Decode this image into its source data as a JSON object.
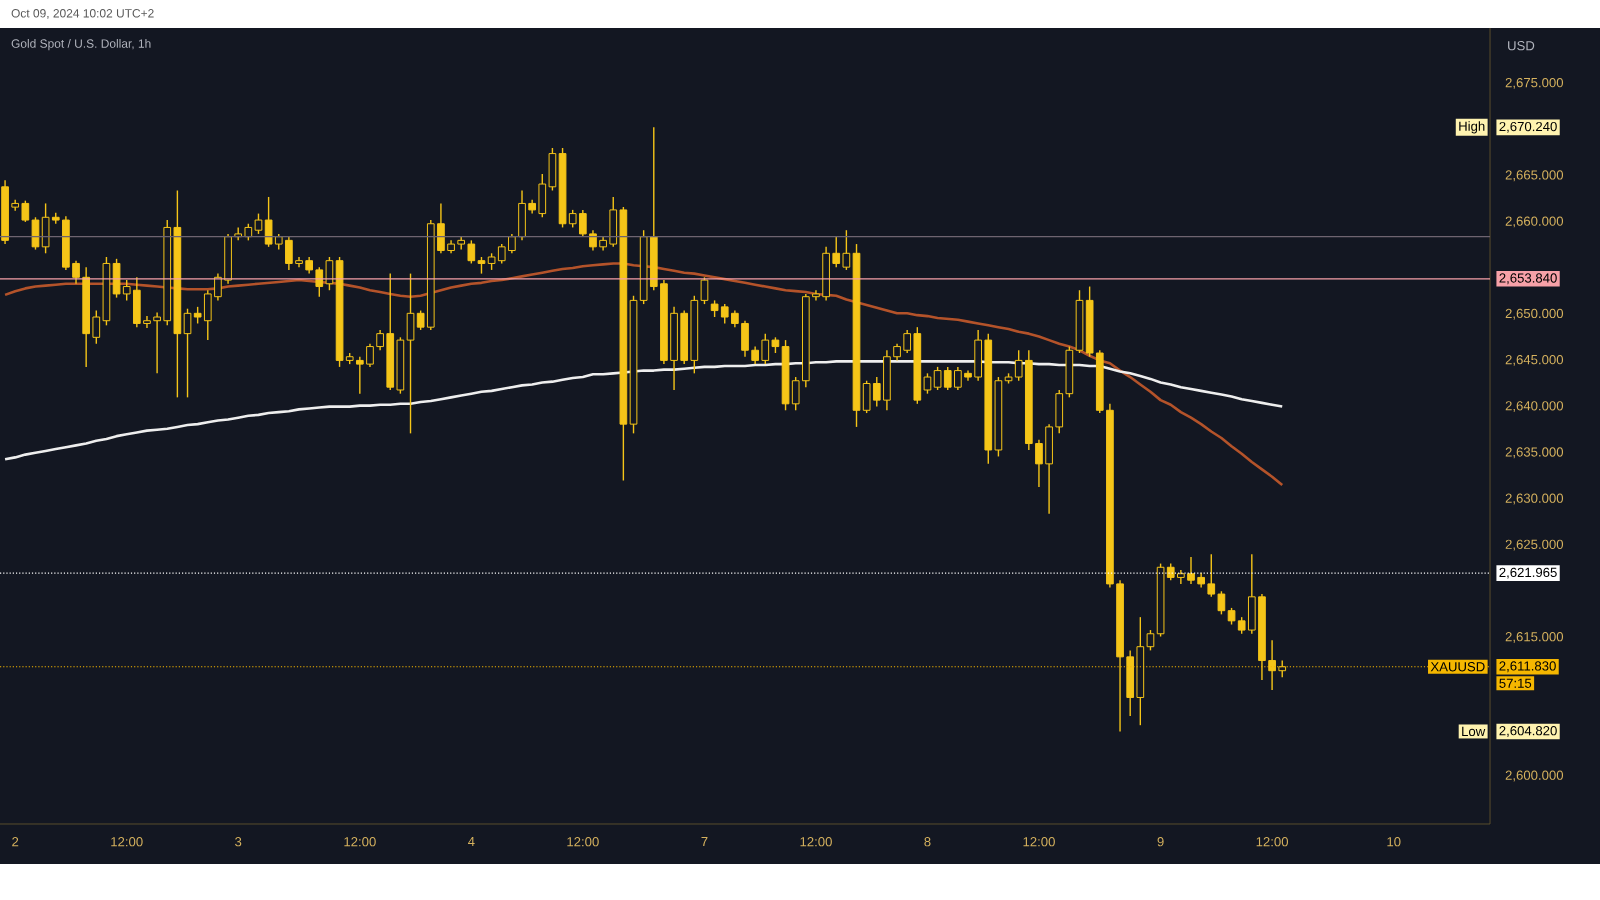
{
  "chart_data": {
    "type": "candlestick",
    "title": "Gold Spot / U.S. Dollar, 1h",
    "subtitle": "Oct 09, 2024 10:02 UTC+2",
    "ylabel": "USD",
    "color": "#f5c518",
    "categories": [
      null,
      "2",
      null,
      null,
      null,
      null,
      null,
      null,
      null,
      null,
      null,
      null,
      "12:00",
      null,
      null,
      null,
      null,
      null,
      null,
      null,
      null,
      null,
      null,
      "3",
      null,
      null,
      null,
      null,
      null,
      null,
      null,
      null,
      null,
      null,
      null,
      "12:00",
      null,
      null,
      null,
      null,
      null,
      null,
      null,
      null,
      null,
      null,
      "4",
      null,
      null,
      null,
      null,
      null,
      null,
      null,
      null,
      null,
      null,
      "12:00",
      null,
      null,
      null,
      null,
      null,
      null,
      null,
      null,
      null,
      null,
      null,
      "7",
      null,
      null,
      null,
      null,
      null,
      null,
      null,
      null,
      null,
      null,
      "12:00",
      null,
      null,
      null,
      null,
      null,
      null,
      null,
      null,
      null,
      null,
      "8",
      null,
      null,
      null,
      null,
      null,
      null,
      null,
      null,
      null,
      null,
      "12:00",
      null,
      null,
      null,
      null,
      null,
      null,
      null,
      null,
      null,
      null,
      null,
      "9",
      null,
      null,
      null,
      null,
      null,
      null,
      null,
      null,
      null,
      null,
      "12:00",
      null,
      null,
      null,
      null,
      null,
      null,
      null,
      null,
      null,
      null,
      null,
      "10",
      null,
      null,
      null,
      null,
      null,
      null,
      null,
      null,
      null
    ],
    "ohlc": [
      [
        2663.8,
        2664.5,
        2657.6,
        2658.0
      ],
      [
        2661.6,
        2662.4,
        2661.2,
        2662.0
      ],
      [
        2662.0,
        2662.3,
        2660.0,
        2660.2
      ],
      [
        2660.2,
        2660.5,
        2657.0,
        2657.3
      ],
      [
        2657.3,
        2662.0,
        2656.6,
        2660.5
      ],
      [
        2660.5,
        2661.0,
        2659.8,
        2660.2
      ],
      [
        2660.2,
        2660.6,
        2654.8,
        2655.1
      ],
      [
        2655.5,
        2655.8,
        2653.3,
        2654.0
      ],
      [
        2654.0,
        2655.1,
        2644.3,
        2647.9
      ],
      [
        2647.5,
        2650.4,
        2646.8,
        2649.7
      ],
      [
        2649.3,
        2656.2,
        2648.8,
        2655.5
      ],
      [
        2655.5,
        2656.0,
        2651.8,
        2652.2
      ],
      [
        2652.2,
        2653.7,
        2651.5,
        2653.0
      ],
      [
        2652.6,
        2654.0,
        2648.6,
        2649.0
      ],
      [
        2649.0,
        2649.8,
        2648.5,
        2649.3
      ],
      [
        2649.3,
        2650.2,
        2643.6,
        2649.7
      ],
      [
        2649.3,
        2660.2,
        2648.8,
        2659.4
      ],
      [
        2659.4,
        2663.4,
        2641.0,
        2647.9
      ],
      [
        2647.9,
        2650.6,
        2641.0,
        2650.1
      ],
      [
        2650.1,
        2650.8,
        2649.0,
        2649.7
      ],
      [
        2649.3,
        2652.6,
        2647.2,
        2652.2
      ],
      [
        2651.9,
        2654.4,
        2651.5,
        2654.0
      ],
      [
        2653.7,
        2658.7,
        2653.3,
        2658.4
      ],
      [
        2658.4,
        2659.4,
        2658.0,
        2658.7
      ],
      [
        2658.4,
        2659.8,
        2658.0,
        2659.4
      ],
      [
        2659.1,
        2660.9,
        2658.7,
        2660.2
      ],
      [
        2660.2,
        2662.7,
        2657.3,
        2657.6
      ],
      [
        2657.6,
        2658.7,
        2657.0,
        2658.4
      ],
      [
        2658.0,
        2658.4,
        2654.8,
        2655.5
      ],
      [
        2655.5,
        2656.2,
        2655.1,
        2655.8
      ],
      [
        2655.8,
        2656.2,
        2654.4,
        2654.8
      ],
      [
        2654.8,
        2655.1,
        2651.9,
        2653.0
      ],
      [
        2653.3,
        2656.2,
        2652.6,
        2655.8
      ],
      [
        2655.8,
        2656.2,
        2644.3,
        2645.0
      ],
      [
        2645.0,
        2645.8,
        2644.6,
        2645.4
      ],
      [
        2645.0,
        2645.4,
        2641.4,
        2644.6
      ],
      [
        2644.6,
        2646.8,
        2644.3,
        2646.5
      ],
      [
        2646.5,
        2648.3,
        2646.1,
        2647.9
      ],
      [
        2647.9,
        2654.4,
        2641.8,
        2642.1
      ],
      [
        2641.8,
        2647.5,
        2641.4,
        2647.2
      ],
      [
        2647.2,
        2654.4,
        2637.1,
        2650.1
      ],
      [
        2650.1,
        2650.4,
        2648.3,
        2648.6
      ],
      [
        2648.6,
        2660.2,
        2648.3,
        2659.8
      ],
      [
        2659.8,
        2662.0,
        2656.6,
        2656.9
      ],
      [
        2656.9,
        2658.0,
        2656.6,
        2657.6
      ],
      [
        2657.6,
        2658.4,
        2657.0,
        2658.0
      ],
      [
        2657.6,
        2658.0,
        2655.5,
        2655.8
      ],
      [
        2655.8,
        2656.2,
        2654.4,
        2655.5
      ],
      [
        2655.5,
        2656.6,
        2654.8,
        2656.2
      ],
      [
        2655.8,
        2657.6,
        2655.5,
        2657.3
      ],
      [
        2656.9,
        2658.7,
        2656.6,
        2658.4
      ],
      [
        2658.4,
        2663.4,
        2658.0,
        2662.0
      ],
      [
        2662.0,
        2662.4,
        2660.9,
        2661.3
      ],
      [
        2660.9,
        2665.2,
        2660.5,
        2664.1
      ],
      [
        2663.8,
        2668.0,
        2663.4,
        2667.4
      ],
      [
        2667.4,
        2668.0,
        2659.4,
        2659.8
      ],
      [
        2659.8,
        2661.3,
        2659.4,
        2660.9
      ],
      [
        2660.9,
        2661.3,
        2658.4,
        2658.7
      ],
      [
        2658.7,
        2659.1,
        2656.9,
        2657.3
      ],
      [
        2657.3,
        2658.4,
        2656.9,
        2658.0
      ],
      [
        2657.6,
        2662.7,
        2657.3,
        2661.3
      ],
      [
        2661.3,
        2661.6,
        2632.0,
        2638.1
      ],
      [
        2638.1,
        2652.0,
        2637.1,
        2651.5
      ],
      [
        2651.5,
        2659.1,
        2651.1,
        2658.4
      ],
      [
        2658.4,
        2670.24,
        2652.6,
        2653.0
      ],
      [
        2653.3,
        2653.7,
        2644.6,
        2645.0
      ],
      [
        2645.0,
        2650.8,
        2641.8,
        2650.1
      ],
      [
        2650.1,
        2650.4,
        2644.6,
        2645.0
      ],
      [
        2645.0,
        2652.0,
        2643.6,
        2651.5
      ],
      [
        2651.5,
        2654.0,
        2651.1,
        2653.7
      ],
      [
        2651.1,
        2651.5,
        2649.7,
        2650.4
      ],
      [
        2650.8,
        2651.1,
        2649.0,
        2649.7
      ],
      [
        2650.1,
        2650.4,
        2648.6,
        2649.0
      ],
      [
        2649.0,
        2649.3,
        2645.4,
        2646.1
      ],
      [
        2646.1,
        2646.5,
        2644.6,
        2645.0
      ],
      [
        2645.0,
        2647.9,
        2644.6,
        2647.2
      ],
      [
        2647.2,
        2647.5,
        2645.8,
        2646.5
      ],
      [
        2646.5,
        2647.2,
        2639.6,
        2640.3
      ],
      [
        2640.3,
        2643.2,
        2639.6,
        2642.8
      ],
      [
        2642.8,
        2652.2,
        2642.1,
        2651.9
      ],
      [
        2651.9,
        2652.6,
        2651.5,
        2652.2
      ],
      [
        2651.9,
        2657.3,
        2651.5,
        2656.6
      ],
      [
        2656.6,
        2658.4,
        2655.1,
        2655.5
      ],
      [
        2655.1,
        2659.1,
        2654.8,
        2656.6
      ],
      [
        2656.6,
        2657.6,
        2637.8,
        2639.6
      ],
      [
        2639.6,
        2642.8,
        2639.3,
        2642.5
      ],
      [
        2642.5,
        2643.2,
        2640.0,
        2640.7
      ],
      [
        2640.7,
        2646.1,
        2639.6,
        2645.4
      ],
      [
        2645.4,
        2646.8,
        2645.0,
        2646.5
      ],
      [
        2646.1,
        2648.3,
        2645.8,
        2647.9
      ],
      [
        2647.9,
        2648.6,
        2640.3,
        2640.7
      ],
      [
        2641.8,
        2643.6,
        2641.4,
        2643.2
      ],
      [
        2642.1,
        2644.3,
        2641.8,
        2643.9
      ],
      [
        2643.9,
        2644.3,
        2641.8,
        2642.1
      ],
      [
        2642.1,
        2644.3,
        2641.8,
        2643.9
      ],
      [
        2643.6,
        2643.9,
        2642.8,
        2643.2
      ],
      [
        2643.2,
        2648.3,
        2642.8,
        2647.2
      ],
      [
        2647.2,
        2647.9,
        2633.8,
        2635.3
      ],
      [
        2635.3,
        2643.2,
        2634.6,
        2642.8
      ],
      [
        2642.8,
        2643.6,
        2642.5,
        2643.2
      ],
      [
        2643.2,
        2646.1,
        2642.8,
        2645.0
      ],
      [
        2645.0,
        2646.1,
        2635.3,
        2636.0
      ],
      [
        2636.0,
        2636.4,
        2631.3,
        2633.8
      ],
      [
        2633.8,
        2638.1,
        2628.4,
        2637.8
      ],
      [
        2637.8,
        2641.8,
        2637.1,
        2641.4
      ],
      [
        2641.4,
        2646.5,
        2641.0,
        2646.1
      ],
      [
        2646.1,
        2652.6,
        2645.8,
        2651.5
      ],
      [
        2651.5,
        2653.0,
        2645.4,
        2645.8
      ],
      [
        2645.8,
        2646.1,
        2639.3,
        2639.6
      ],
      [
        2639.6,
        2640.3,
        2620.4,
        2620.8
      ],
      [
        2620.8,
        2621.2,
        2604.82,
        2612.9
      ],
      [
        2612.9,
        2613.6,
        2606.5,
        2608.5
      ],
      [
        2608.5,
        2617.2,
        2605.5,
        2614.0
      ],
      [
        2614.0,
        2615.8,
        2613.6,
        2615.4
      ],
      [
        2615.4,
        2623.0,
        2615.1,
        2622.6
      ],
      [
        2622.6,
        2623.0,
        2621.2,
        2621.5
      ],
      [
        2621.5,
        2622.3,
        2620.8,
        2621.9
      ],
      [
        2621.9,
        2623.7,
        2620.8,
        2621.2
      ],
      [
        2621.5,
        2622.0,
        2620.4,
        2620.8
      ],
      [
        2620.8,
        2624.0,
        2619.4,
        2619.7
      ],
      [
        2619.7,
        2620.0,
        2617.5,
        2617.9
      ],
      [
        2617.9,
        2618.2,
        2616.4,
        2616.8
      ],
      [
        2616.8,
        2617.2,
        2615.4,
        2615.8
      ],
      [
        2615.8,
        2624.0,
        2615.4,
        2619.4
      ],
      [
        2619.4,
        2619.7,
        2610.4,
        2612.5
      ],
      [
        2612.5,
        2614.7,
        2609.3,
        2611.4
      ],
      [
        2611.4,
        2612.5,
        2610.7,
        2611.83
      ],
      null,
      null,
      null,
      null,
      null,
      null,
      null,
      null,
      null,
      null,
      null,
      null,
      null,
      null,
      null,
      null,
      null,
      null,
      null,
      null
    ],
    "series": [
      {
        "type": "line",
        "color": "#b4532a",
        "values": [
          2652.1,
          2652.5,
          2652.8,
          2653.0,
          2653.1,
          2653.2,
          2653.3,
          2653.3,
          2653.3,
          2653.3,
          2653.3,
          2653.3,
          2653.3,
          2653.2,
          2653.1,
          2653.0,
          2652.9,
          2652.8,
          2652.7,
          2652.7,
          2652.7,
          2652.8,
          2653.0,
          2653.1,
          2653.2,
          2653.3,
          2653.4,
          2653.5,
          2653.6,
          2653.7,
          2653.6,
          2653.5,
          2653.4,
          2653.3,
          2653.1,
          2652.9,
          2652.6,
          2652.4,
          2652.2,
          2652.0,
          2651.9,
          2652.0,
          2652.3,
          2652.6,
          2652.9,
          2653.1,
          2653.3,
          2653.4,
          2653.6,
          2653.7,
          2653.9,
          2654.1,
          2654.3,
          2654.5,
          2654.7,
          2654.9,
          2655.0,
          2655.2,
          2655.3,
          2655.4,
          2655.5,
          2655.5,
          2655.3,
          2655.2,
          2655.1,
          2654.9,
          2654.7,
          2654.5,
          2654.4,
          2654.2,
          2654.0,
          2653.8,
          2653.6,
          2653.4,
          2653.2,
          2653.0,
          2652.8,
          2652.6,
          2652.5,
          2652.4,
          2652.2,
          2652.1,
          2652.0,
          2651.6,
          2651.3,
          2651.0,
          2650.7,
          2650.4,
          2650.1,
          2650.1,
          2649.9,
          2649.8,
          2649.6,
          2649.5,
          2649.4,
          2649.2,
          2649.0,
          2648.8,
          2648.6,
          2648.4,
          2648.1,
          2647.9,
          2647.6,
          2647.2,
          2646.8,
          2646.5,
          2646.1,
          2645.5,
          2645.0,
          2644.7,
          2643.9,
          2643.2,
          2642.4,
          2641.6,
          2640.7,
          2640.2,
          2639.4,
          2638.8,
          2638.1,
          2637.3,
          2636.6,
          2635.7,
          2634.9,
          2634.0,
          2633.2,
          2632.4,
          2631.5,
          null,
          null,
          null,
          null,
          null,
          null,
          null,
          null,
          null,
          null,
          null,
          null,
          null,
          null,
          null,
          null,
          null,
          null,
          null,
          null
        ]
      },
      {
        "type": "line",
        "color": "#eeeeee",
        "values": [
          2634.3,
          2634.5,
          2634.8,
          2635.0,
          2635.2,
          2635.4,
          2635.6,
          2635.8,
          2636.0,
          2636.3,
          2636.5,
          2636.8,
          2637.0,
          2637.2,
          2637.4,
          2637.5,
          2637.6,
          2637.8,
          2638.0,
          2638.1,
          2638.3,
          2638.5,
          2638.6,
          2638.8,
          2639.0,
          2639.1,
          2639.3,
          2639.4,
          2639.5,
          2639.7,
          2639.8,
          2639.9,
          2640.0,
          2640.0,
          2640.0,
          2640.1,
          2640.1,
          2640.2,
          2640.2,
          2640.3,
          2640.3,
          2640.5,
          2640.6,
          2640.8,
          2641.0,
          2641.2,
          2641.4,
          2641.6,
          2641.7,
          2641.9,
          2642.1,
          2642.3,
          2642.4,
          2642.6,
          2642.7,
          2642.9,
          2643.1,
          2643.2,
          2643.5,
          2643.5,
          2643.6,
          2643.7,
          2643.8,
          2643.9,
          2643.9,
          2644.0,
          2644.0,
          2644.1,
          2644.2,
          2644.3,
          2644.3,
          2644.4,
          2644.4,
          2644.4,
          2644.5,
          2644.5,
          2644.6,
          2644.6,
          2644.7,
          2644.7,
          2644.8,
          2644.8,
          2644.9,
          2644.9,
          2644.9,
          2644.9,
          2644.9,
          2644.9,
          2644.9,
          2644.9,
          2644.9,
          2644.9,
          2644.9,
          2644.9,
          2644.9,
          2644.9,
          2644.9,
          2644.8,
          2644.8,
          2644.8,
          2644.7,
          2644.7,
          2644.6,
          2644.6,
          2644.5,
          2644.5,
          2644.5,
          2644.4,
          2644.4,
          2644.1,
          2643.8,
          2643.6,
          2643.3,
          2643.0,
          2642.6,
          2642.4,
          2642.1,
          2641.9,
          2641.7,
          2641.5,
          2641.3,
          2641.1,
          2640.8,
          2640.6,
          2640.4,
          2640.2,
          2640.0,
          null,
          null,
          null,
          null,
          null,
          null,
          null,
          null,
          null,
          null,
          null,
          null,
          null,
          null,
          null,
          null,
          null,
          null,
          null,
          null
        ]
      }
    ],
    "ylim": [
      2594.8,
      2681.0
    ],
    "yticks": [
      {
        "value": 2600,
        "label": "2,600.000"
      },
      {
        "value": 2615,
        "label": "2,615.000"
      },
      {
        "value": 2625,
        "label": "2,625.000"
      },
      {
        "value": 2630,
        "label": "2,630.000"
      },
      {
        "value": 2635,
        "label": "2,635.000"
      },
      {
        "value": 2640,
        "label": "2,640.000"
      },
      {
        "value": 2645,
        "label": "2,645.000"
      },
      {
        "value": 2650,
        "label": "2,650.000"
      },
      {
        "value": 2660,
        "label": "2,660.000"
      },
      {
        "value": 2665,
        "label": "2,665.000"
      },
      {
        "value": 2675,
        "label": "2,675.000"
      }
    ],
    "ref_lines": [
      {
        "axis": "y",
        "value": 2658.4,
        "color": "#6e6470",
        "line_style": "solid"
      },
      {
        "axis": "y",
        "value": 2653.84,
        "label": "2,653.840",
        "color": "#f7a1a8",
        "line_style": "solid"
      },
      {
        "axis": "y",
        "value": 2621.965,
        "label": "2,621.965",
        "color": "#ffffff",
        "line_style": "dotted"
      },
      {
        "axis": "y",
        "value": 2611.83,
        "label": "2,611.830",
        "color": "#f5b700",
        "line_style": "dotted"
      }
    ],
    "annotations": [
      "High",
      "2,670.240",
      "XAUUSD",
      "57:15",
      "Low",
      "2,604.820"
    ]
  }
}
